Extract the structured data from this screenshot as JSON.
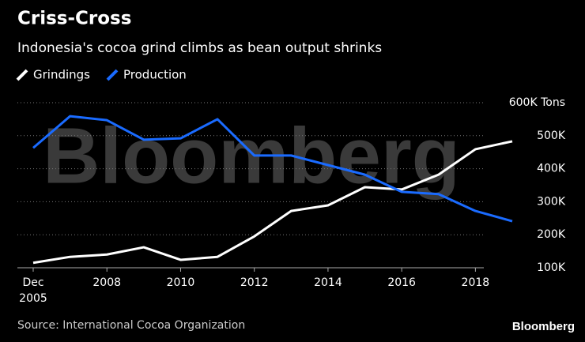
{
  "chart_data": {
    "type": "line",
    "title": "Criss-Cross",
    "subtitle": "Indonesia's cocoa grind climbs as bean output shrinks",
    "watermark": "Bloomberg",
    "source": "Source: International Cocoa Organization",
    "logo": "Bloomberg",
    "x": [
      2006,
      2007,
      2008,
      2009,
      2010,
      2011,
      2012,
      2013,
      2014,
      2015,
      2016,
      2017,
      2018,
      2019
    ],
    "xlim": [
      2006,
      2019
    ],
    "xticks": [
      {
        "value": 2006,
        "label": "Dec 2005"
      },
      2008,
      2010,
      2012,
      2014,
      2016,
      2018
    ],
    "ylim": [
      100000,
      600000
    ],
    "yticks": [
      {
        "value": 100000,
        "label": "100K"
      },
      {
        "value": 200000,
        "label": "200K"
      },
      {
        "value": 300000,
        "label": "300K"
      },
      {
        "value": 400000,
        "label": "400K"
      },
      {
        "value": 500000,
        "label": "500K"
      },
      {
        "value": 600000,
        "label": "600K Tons"
      }
    ],
    "grid": true,
    "series": [
      {
        "name": "Grindings",
        "color": "#ffffff",
        "values": [
          115000,
          133000,
          140000,
          162000,
          124000,
          133000,
          195000,
          272000,
          289000,
          344000,
          337000,
          382000,
          459000,
          483000
        ]
      },
      {
        "name": "Production",
        "color": "#1a6bff",
        "values": [
          463000,
          559000,
          547000,
          488000,
          492000,
          550000,
          440000,
          440000,
          411000,
          382000,
          330000,
          323000,
          272000,
          241000
        ]
      }
    ]
  }
}
